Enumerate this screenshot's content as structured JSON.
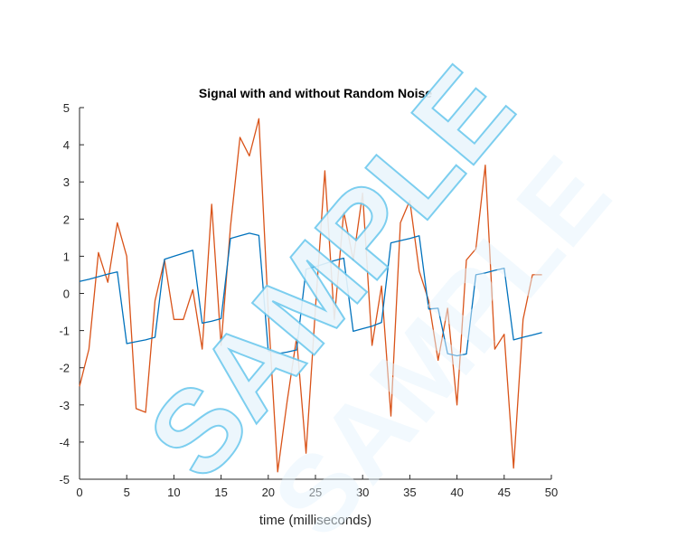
{
  "chart_data": {
    "type": "line",
    "title": "Signal with and without Random Noise",
    "xlabel": "time (milliseconds)",
    "ylabel": "",
    "xlim": [
      0,
      50
    ],
    "ylim": [
      -5,
      5
    ],
    "xticks": [
      0,
      5,
      10,
      15,
      20,
      25,
      30,
      35,
      40,
      45,
      50
    ],
    "yticks": [
      5,
      4,
      3,
      2,
      1,
      0,
      -1,
      -2,
      -3,
      -4,
      -5
    ],
    "grid": false,
    "legend": "none",
    "series": [
      {
        "color": "#0072BD",
        "x": [
          0,
          1,
          2,
          3,
          4,
          5,
          6,
          7,
          8,
          9,
          10,
          11,
          12,
          13,
          14,
          15,
          16,
          17,
          18,
          19,
          20,
          21,
          22,
          23,
          24,
          25,
          26,
          27,
          28,
          29,
          30,
          31,
          32,
          33,
          34,
          35,
          36,
          37,
          38,
          39,
          40,
          41,
          42,
          43,
          44,
          45,
          46,
          47,
          48,
          49
        ],
        "y": [
          0.32,
          0.38,
          0.45,
          0.52,
          0.58,
          -1.35,
          -1.3,
          -1.25,
          -1.18,
          0.92,
          1.0,
          1.08,
          1.16,
          -0.8,
          -0.75,
          -0.68,
          1.48,
          1.55,
          1.62,
          1.56,
          -1.55,
          -1.62,
          -1.58,
          -1.52,
          0.65,
          0.72,
          0.8,
          0.88,
          0.95,
          -1.02,
          -0.95,
          -0.88,
          -0.78,
          1.36,
          1.42,
          1.48,
          1.55,
          -0.42,
          -0.4,
          -1.62,
          -1.68,
          -1.63,
          0.5,
          0.55,
          0.62,
          0.68,
          -1.25,
          -1.18,
          -1.12,
          -1.05
        ]
      },
      {
        "color": "#D95319",
        "x": [
          0,
          1,
          2,
          3,
          4,
          5,
          6,
          7,
          8,
          9,
          10,
          11,
          12,
          13,
          14,
          15,
          16,
          17,
          18,
          19,
          20,
          21,
          22,
          23,
          24,
          25,
          26,
          27,
          28,
          29,
          30,
          31,
          32,
          33,
          34,
          35,
          36,
          37,
          38,
          39,
          40,
          41,
          42,
          43,
          44,
          45,
          46,
          47,
          48,
          49
        ],
        "y": [
          -2.5,
          -1.5,
          1.1,
          0.3,
          1.9,
          1.0,
          -3.1,
          -3.2,
          -0.2,
          0.9,
          -0.7,
          -0.7,
          0.1,
          -1.5,
          2.4,
          -1.4,
          1.8,
          4.2,
          3.7,
          4.7,
          -0.5,
          -4.8,
          -2.9,
          -1.2,
          -4.3,
          -0.4,
          3.3,
          -0.7,
          2.2,
          0.9,
          2.7,
          -1.4,
          0.2,
          -3.3,
          1.9,
          2.5,
          0.6,
          -0.2,
          -1.8,
          -0.4,
          -3.0,
          0.9,
          1.2,
          3.45,
          -1.5,
          -1.1,
          -4.7,
          -0.7,
          0.5,
          0.5
        ]
      }
    ],
    "watermark": {
      "text": "SAMPLE",
      "color": "#6EC9EE"
    }
  }
}
